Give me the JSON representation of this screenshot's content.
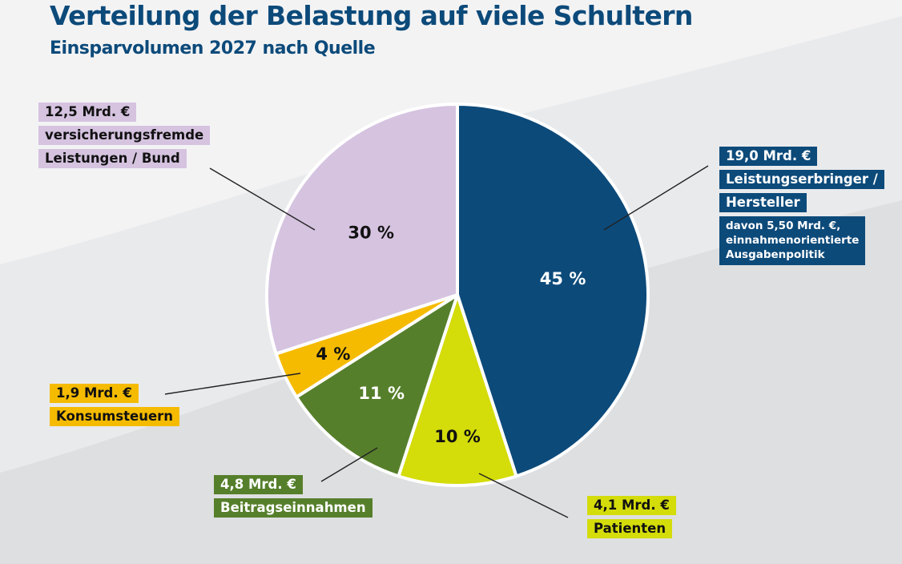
{
  "header": {
    "title": "Verteilung der Belastung auf viele Schultern",
    "subtitle": "Einsparvolumen 2027 nach Quelle"
  },
  "colors": {
    "title": "#0c4a7a",
    "background_light": "#f2f2f3",
    "background_mid": "#e8e9eb",
    "background_dark": "#dcdddf",
    "slice_separator": "#ffffff",
    "leader_line": "#222222"
  },
  "chart_data": {
    "type": "pie",
    "title": "Verteilung der Belastung auf viele Schultern",
    "subtitle": "Einsparvolumen 2027 nach Quelle",
    "start_angle": "12 o'clock",
    "direction": "clockwise",
    "unit": "Mrd. €",
    "slices": [
      {
        "name": "Leistungserbringer / Hersteller",
        "amount": "19,0 Mrd. €",
        "value": 19.0,
        "percent": 45,
        "percent_label": "45 %",
        "color": "#0c4a7a",
        "text_color": "#ffffff",
        "label_text_color": "#ffffff",
        "label_lines": [
          "19,0 Mrd. €",
          "Leistungserbringer /",
          "Hersteller"
        ],
        "note": "davon 5,50 Mrd. €,\neinnahmenorientierte\nAusgabenpolitik"
      },
      {
        "name": "Patienten",
        "amount": "4,1 Mrd. €",
        "value": 4.1,
        "percent": 10,
        "percent_label": "10 %",
        "color": "#d4dc0a",
        "text_color": "#111111",
        "label_text_color": "#111111",
        "label_lines": [
          "4,1 Mrd. €",
          "Patienten"
        ]
      },
      {
        "name": "Beitragseinnahmen",
        "amount": "4,8 Mrd. €",
        "value": 4.8,
        "percent": 11,
        "percent_label": "11 %",
        "color": "#567f2b",
        "text_color": "#ffffff",
        "label_text_color": "#ffffff",
        "label_lines": [
          "4,8 Mrd. €",
          "Beitragseinnahmen"
        ]
      },
      {
        "name": "Konsumsteuern",
        "amount": "1,9 Mrd. €",
        "value": 1.9,
        "percent": 4,
        "percent_label": "4 %",
        "color": "#f5bb00",
        "text_color": "#111111",
        "label_text_color": "#111111",
        "label_lines": [
          "1,9 Mrd. €",
          "Konsumsteuern"
        ]
      },
      {
        "name": "versicherungsfremde Leistungen / Bund",
        "amount": "12,5 Mrd. €",
        "value": 12.5,
        "percent": 30,
        "percent_label": "30 %",
        "color": "#d5c3e0",
        "text_color": "#111111",
        "label_text_color": "#111111",
        "label_lines": [
          "12,5 Mrd. €",
          "versicherungsfremde",
          "Leistungen / Bund"
        ]
      }
    ]
  }
}
